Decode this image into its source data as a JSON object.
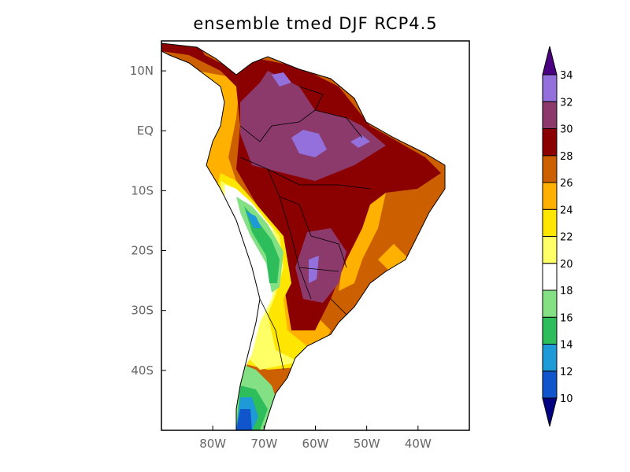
{
  "title": "ensemble tmed DJF RCP4.5",
  "map": {
    "lon_range": [
      -90,
      -30
    ],
    "lat_range": [
      -50,
      15
    ],
    "lat_ticks": [
      {
        "value": 10,
        "label": "10N"
      },
      {
        "value": 0,
        "label": "EQ"
      },
      {
        "value": -10,
        "label": "10S"
      },
      {
        "value": -20,
        "label": "20S"
      },
      {
        "value": -30,
        "label": "30S"
      },
      {
        "value": -40,
        "label": "40S"
      }
    ],
    "lon_ticks": [
      {
        "value": -80,
        "label": "80W"
      },
      {
        "value": -70,
        "label": "70W"
      },
      {
        "value": -60,
        "label": "60W"
      },
      {
        "value": -50,
        "label": "50W"
      },
      {
        "value": -40,
        "label": "40W"
      }
    ]
  },
  "colorbar": {
    "labels": [
      "10",
      "12",
      "14",
      "16",
      "18",
      "20",
      "22",
      "24",
      "26",
      "28",
      "30",
      "32",
      "34"
    ],
    "colors": [
      "#1155cc",
      "#1e9ad6",
      "#2dbd5a",
      "#84e084",
      "#ffffff",
      "#ffff66",
      "#ffe600",
      "#ffb000",
      "#cc5f00",
      "#8b0000",
      "#8b3a6b",
      "#9370db"
    ],
    "under_color": "#000080",
    "over_color": "#4b0082"
  }
}
